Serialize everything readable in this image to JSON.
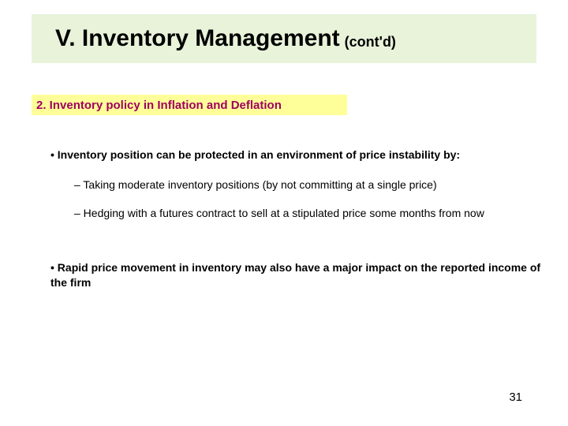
{
  "title": {
    "main": "V. Inventory Management",
    "sub": "(cont'd)"
  },
  "subtitle": "2.  Inventory policy in Inflation and Deflation",
  "bullets": {
    "b1": "•  Inventory position can be protected in an environment of price instability by:",
    "b2a": "–  Taking moderate inventory positions (by not committing at a single price)",
    "b2b": "–  Hedging with a futures contract to sell at a stipulated price some months from now",
    "b3": "•   Rapid price movement in inventory may also have a major impact on the reported income of the firm"
  },
  "pageNumber": "31",
  "colors": {
    "titleBg": "#e8f3d9",
    "subtitleBg": "#ffff99",
    "subtitleText": "#9e005d",
    "pageBg": "#ffffff"
  }
}
